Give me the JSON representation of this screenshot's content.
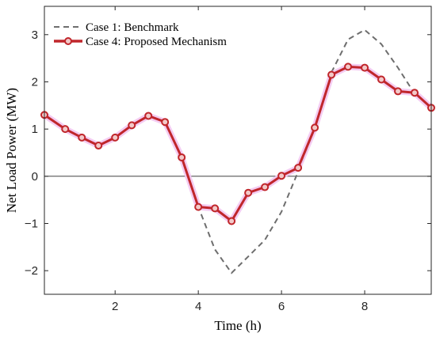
{
  "chart_data": {
    "type": "line",
    "xlabel": "Time (h)",
    "ylabel": "Net Load Power (MW)",
    "xlim": [
      0.3,
      9.6
    ],
    "ylim": [
      -2.5,
      3.6
    ],
    "x_ticks": [
      2,
      4,
      6,
      8
    ],
    "y_ticks": [
      -2,
      -1,
      0,
      1,
      2,
      3
    ],
    "y_tick_labels": [
      "−2",
      "−1",
      "0",
      "1",
      "2",
      "3"
    ],
    "grid": false,
    "zero_line": true,
    "legend_position": "top-left",
    "series": [
      {
        "name": "Case 1: Benchmark",
        "style": "dashed",
        "color": "#6e6e6e",
        "x": [
          0.3,
          0.8,
          1.2,
          1.6,
          2.0,
          2.4,
          2.8,
          3.2,
          3.6,
          4.0,
          4.4,
          4.8,
          5.2,
          5.6,
          6.0,
          6.4,
          6.8,
          7.2,
          7.6,
          8.0,
          8.4,
          8.8,
          9.2,
          9.6
        ],
        "y": [
          1.3,
          1.0,
          0.82,
          0.65,
          0.82,
          1.08,
          1.28,
          1.15,
          0.4,
          -0.65,
          -1.55,
          -2.05,
          -1.7,
          -1.35,
          -0.75,
          0.1,
          1.0,
          2.2,
          2.9,
          3.1,
          2.8,
          2.3,
          1.75,
          1.45
        ]
      },
      {
        "name": "Case 4: Proposed Mechanism",
        "style": "solid-with-circle-markers",
        "color": "#c0262b",
        "x": [
          0.3,
          0.8,
          1.2,
          1.6,
          2.0,
          2.4,
          2.8,
          3.2,
          3.6,
          4.0,
          4.4,
          4.8,
          5.2,
          5.6,
          6.0,
          6.4,
          6.8,
          7.2,
          7.6,
          8.0,
          8.4,
          8.8,
          9.2,
          9.6
        ],
        "y": [
          1.3,
          1.0,
          0.82,
          0.65,
          0.82,
          1.08,
          1.28,
          1.15,
          0.4,
          -0.65,
          -0.68,
          -0.95,
          -0.35,
          -0.23,
          0.01,
          0.18,
          1.03,
          2.15,
          2.32,
          2.3,
          2.05,
          1.8,
          1.77,
          1.45
        ]
      }
    ]
  }
}
